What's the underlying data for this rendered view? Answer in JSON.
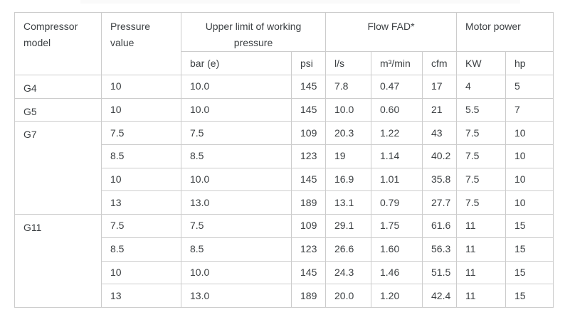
{
  "page": {
    "background": "#ffffff",
    "top_strip_color": "#fafafa",
    "border_color": "#cccccc",
    "text_color": "#3c4043"
  },
  "table": {
    "header": {
      "compressor_model": "Compressor model",
      "pressure_value": "Pressure value",
      "upper_limit": "Upper limit of working pressure",
      "flow_fad": "Flow FAD*",
      "motor_power": "Motor power",
      "units": [
        "bar (e)",
        "psi",
        "l/s",
        "m³/min",
        "cfm",
        "KW",
        "hp"
      ]
    },
    "groups": [
      {
        "model": "G4",
        "rows": [
          [
            "10",
            "10.0",
            "145",
            "7.8",
            "0.47",
            "17",
            "4",
            "5"
          ]
        ]
      },
      {
        "model": "G5",
        "rows": [
          [
            "10",
            "10.0",
            "145",
            "10.0",
            "0.60",
            "21",
            "5.5",
            "7"
          ]
        ]
      },
      {
        "model": "G7",
        "rows": [
          [
            "7.5",
            "7.5",
            "109",
            "20.3",
            "1.22",
            "43",
            "7.5",
            "10"
          ],
          [
            "8.5",
            "8.5",
            "123",
            "19",
            "1.14",
            "40.2",
            "7.5",
            "10"
          ],
          [
            "10",
            "10.0",
            "145",
            "16.9",
            "1.01",
            "35.8",
            "7.5",
            "10"
          ],
          [
            "13",
            "13.0",
            "189",
            "13.1",
            "0.79",
            "27.7",
            "7.5",
            "10"
          ]
        ]
      },
      {
        "model": "G11",
        "rows": [
          [
            "7.5",
            "7.5",
            "109",
            "29.1",
            "1.75",
            "61.6",
            "11",
            "15"
          ],
          [
            "8.5",
            "8.5",
            "123",
            "26.6",
            "1.60",
            "56.3",
            "11",
            "15"
          ],
          [
            "10",
            "10.0",
            "145",
            "24.3",
            "1.46",
            "51.5",
            "11",
            "15"
          ],
          [
            "13",
            "13.0",
            "189",
            "20.0",
            "1.20",
            "42.4",
            "11",
            "15"
          ]
        ]
      }
    ]
  }
}
